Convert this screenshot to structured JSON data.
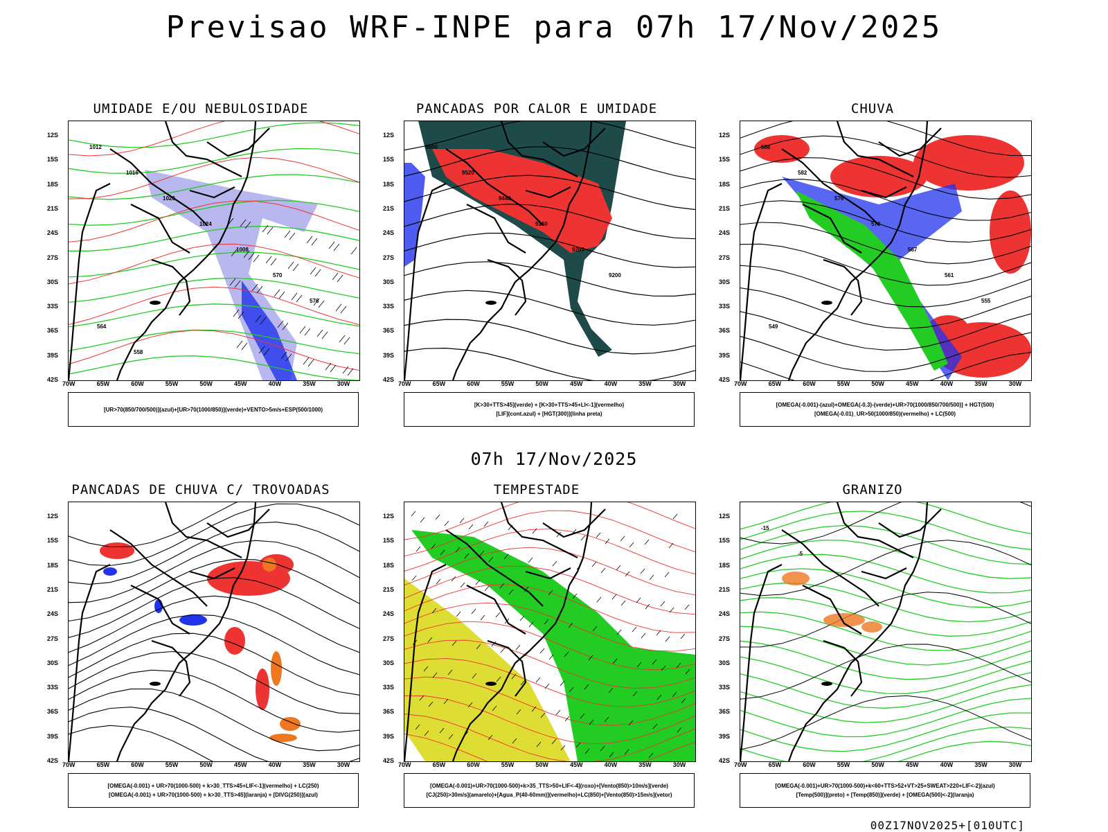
{
  "title": "Previsao WRF-INPE  para 07h 17/Nov/2025",
  "subtitle": "07h 17/Nov/2025",
  "footer": "00Z17NOV2025+[010UTC]",
  "lat_labels": [
    "12S",
    "15S",
    "18S",
    "21S",
    "24S",
    "27S",
    "30S",
    "33S",
    "36S",
    "39S",
    "42S"
  ],
  "lon_labels": [
    "70W",
    "65W",
    "60W",
    "55W",
    "50W",
    "45W",
    "40W",
    "35W",
    "30W"
  ],
  "colors": {
    "red": "#ee3333",
    "green": "#22cc22",
    "blue": "#2233ee",
    "lightblue": "#b8b8ee",
    "darkteal": "#1f4a4a",
    "yellow": "#dddd33",
    "orange": "#ee7722"
  },
  "panels": [
    {
      "title": "UMIDADE E/OU NEBULOSIDADE",
      "legend": [
        "[UR>70(850/700/500)](azul)+[UR>70(1000/850)](verde)+VENTO>5m/s+ESP(500/1000)"
      ],
      "contour_labels": [
        "1012",
        "1016",
        "1020",
        "1024",
        "1008",
        "570",
        "576",
        "564",
        "558"
      ]
    },
    {
      "title": "PANCADAS POR CALOR E UMIDADE",
      "legend": [
        "[K>30+TTS>45](verde) + [K>30+TTS>45+LI<-1](vermelho)",
        "[LIF](cont.azul) + [HGT(300)](linha preta)"
      ],
      "contour_labels": [
        "9600",
        "9520",
        "9440",
        "9360",
        "9280",
        "9200"
      ]
    },
    {
      "title": "CHUVA",
      "legend": [
        "[OMEGA(-0.001)-(azul)+OMEGA(-0.3)-(verde)+UR>70(1000/850/700/500)] + HGT(500)",
        "[OMEGA(-0.01)_UR>50(1000/850)(vermelho) + LC(500)"
      ],
      "contour_labels": [
        "588",
        "582",
        "576",
        "570",
        "567",
        "561",
        "555",
        "549"
      ]
    },
    {
      "title": "PANCADAS DE CHUVA C/ TROVOADAS",
      "legend": [
        "[OMEGA(-0.001) + UR>70(1000-500) + k>30_TTS>45+LIF<-1](vermelho) + LC(250)",
        "[OMEGA(-0.001) + UR>70(1000-500) + k>30_TTS>45](laranja) + [DIVG(250)](azul)"
      ],
      "contour_labels": []
    },
    {
      "title": "TEMPESTADE",
      "legend": [
        "[OMEGA(-0.001)+UR>70(1000-500)+k>35_TTS>50+LIF<-4](roxo)+[Vento(850)>10m/s](verde)",
        "[CJ(250)>30m/s](amarelo)+[Agua_P(40-60mm)](vermelho)+LC(850)+[Vento(850)>15m/s](vetor)"
      ],
      "contour_labels": []
    },
    {
      "title": "GRANIZO",
      "legend": [
        "[OMEGA(-0.001)+UR>70(1000-500)+k<60+TTS>52+VT>25+SWEAT>220+LIF<-2](azul)",
        "[Temp(500)](preto) + [Temp(850)](verde) + [OMEGA(500)<-2](laranja)"
      ],
      "contour_labels": [
        "-15",
        "-5"
      ]
    }
  ]
}
